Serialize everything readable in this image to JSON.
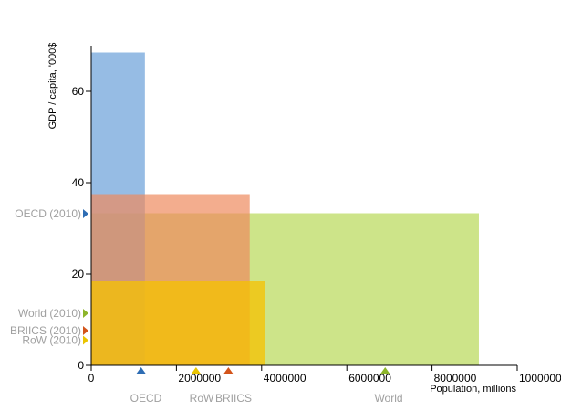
{
  "chart_data": {
    "type": "variable-width-bar",
    "xlabel": "Population, millions",
    "ylabel": "GDP / capita, '000$",
    "xlim": [
      0,
      10000000
    ],
    "ylim": [
      0,
      70
    ],
    "x_ticks": [
      0,
      2000000,
      4000000,
      6000000,
      8000000,
      10000000
    ],
    "x_tick_labels": [
      "0",
      "2000000",
      "4000000",
      "6000000",
      "8000000",
      "10000000"
    ],
    "y_ticks": [
      0,
      20,
      40,
      60
    ],
    "y_tick_labels": [
      "0",
      "20",
      "40",
      "60"
    ],
    "series": [
      {
        "name": "World",
        "x0": 0,
        "x1": 9100000,
        "value": 33.3,
        "color": "#b8d957",
        "opacity": 0.7,
        "marker_color": "#8db52a",
        "x_marker": 6900000,
        "y_marker_label": "World (2010)"
      },
      {
        "name": "OECD",
        "x0": 0,
        "x1": 1260000,
        "value": 68.5,
        "color": "#6a9fd8",
        "opacity": 0.7,
        "marker_color": "#2e6db4",
        "x_marker": 1170000,
        "y_marker_label": "OECD (2010)"
      },
      {
        "name": "BRIICS",
        "x0": 0,
        "x1": 3720000,
        "value": 37.5,
        "color": "#ee8a5e",
        "opacity": 0.7,
        "marker_color": "#d3541a",
        "x_marker": 3220000,
        "y_marker_label": "BRIICS (2010)"
      },
      {
        "name": "RoW",
        "x0": 0,
        "x1": 4080000,
        "value": 18.4,
        "color": "#f5c200",
        "opacity": 0.75,
        "marker_color": "#eac400",
        "x_marker": 2460000,
        "y_marker_label": "RoW (2010)"
      }
    ],
    "y_markers": [
      {
        "label": "OECD (2010)",
        "value": 33.2,
        "color": "#2e6db4"
      },
      {
        "label": "World (2010)",
        "value": 11.4,
        "color": "#8db52a"
      },
      {
        "label": "BRIICS (2010)",
        "value": 7.6,
        "color": "#d3541a"
      },
      {
        "label": "RoW (2010)",
        "value": 5.5,
        "color": "#eac400"
      }
    ],
    "x_markers": [
      {
        "label": "OECD",
        "value": 1170000,
        "color": "#2e6db4"
      },
      {
        "label": "RoW",
        "value": 2460000,
        "color": "#eac400"
      },
      {
        "label": "BRIICS",
        "value": 3220000,
        "color": "#d3541a"
      },
      {
        "label": "World",
        "value": 6900000,
        "color": "#8db52a"
      }
    ]
  }
}
